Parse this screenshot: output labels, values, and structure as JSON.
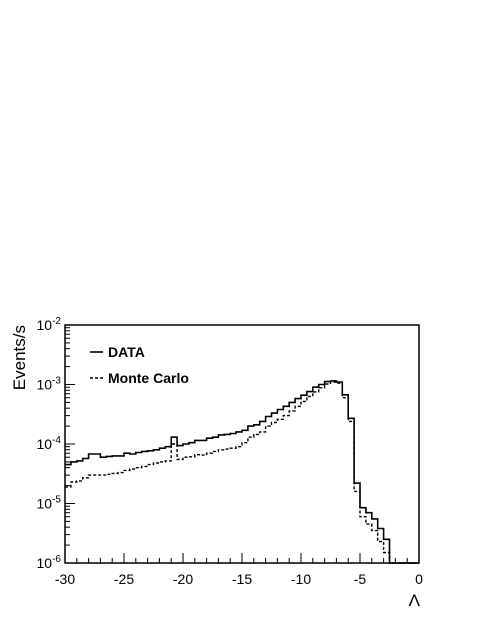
{
  "chart_data": {
    "type": "line",
    "style": "step-histogram",
    "title": "",
    "xlabel": "Λ",
    "ylabel": "Events/s",
    "xlim": [
      -30,
      0
    ],
    "ylim": [
      1e-06,
      0.01
    ],
    "yscale": "log",
    "grid": false,
    "legend_position": "top-left",
    "x_ticks": [
      "-30",
      "-25",
      "-20",
      "-15",
      "-10",
      "-5",
      "0"
    ],
    "y_ticks": [
      {
        "base": "10",
        "exp": "-6",
        "value": 1e-06
      },
      {
        "base": "10",
        "exp": "-5",
        "value": 1e-05
      },
      {
        "base": "10",
        "exp": "-4",
        "value": 0.0001
      },
      {
        "base": "10",
        "exp": "-3",
        "value": 0.001
      },
      {
        "base": "10",
        "exp": "-2",
        "value": 0.01
      }
    ],
    "bin_width": 0.5,
    "bin_start": -30,
    "series": [
      {
        "name": "DATA",
        "line_style": "solid",
        "color": "#000000",
        "values": [
          4.5e-05,
          5e-05,
          5.2e-05,
          5.7e-05,
          6.8e-05,
          6.8e-05,
          6e-05,
          6.2e-05,
          6.3e-05,
          6.3e-05,
          7e-05,
          6.8e-05,
          7.2e-05,
          7.5e-05,
          7.7e-05,
          8e-05,
          8.5e-05,
          9e-05,
          0.00013,
          9.4e-05,
          0.0001,
          0.000105,
          0.000115,
          0.000115,
          0.000125,
          0.00013,
          0.000142,
          0.000145,
          0.00015,
          0.00016,
          0.00017,
          0.0002,
          0.00021,
          0.00024,
          0.00029,
          0.00033,
          0.00038,
          0.00043,
          0.0005,
          0.00058,
          0.00066,
          0.00076,
          0.0009,
          0.001,
          0.00112,
          0.00115,
          0.0011,
          0.00067,
          0.00027,
          2.2e-05,
          8.5e-06,
          7e-06,
          5.5e-06,
          3.8e-06,
          2.5e-06,
          1e-06,
          1e-06,
          1e-06,
          1e-06,
          1e-06
        ]
      },
      {
        "name": "Monte Carlo",
        "line_style": "dashed",
        "color": "#000000",
        "values": [
          1.9e-05,
          2.3e-05,
          2.4e-05,
          2.7e-05,
          3e-05,
          3e-05,
          3e-05,
          3.1e-05,
          3.2e-05,
          3.3e-05,
          3.6e-05,
          3.8e-05,
          4e-05,
          4.2e-05,
          4.5e-05,
          4.8e-05,
          5e-05,
          5.2e-05,
          0.0001,
          5.5e-05,
          6e-05,
          6.1e-05,
          6.6e-05,
          6.5e-05,
          7e-05,
          7.5e-05,
          8e-05,
          8.2e-05,
          8.5e-05,
          9e-05,
          0.000105,
          0.00013,
          0.000145,
          0.00016,
          0.0002,
          0.00023,
          0.00026,
          0.0003,
          0.00036,
          0.00043,
          0.00052,
          0.00063,
          0.00075,
          0.00088,
          0.00102,
          0.0011,
          0.00105,
          0.0006,
          0.00024,
          1.6e-05,
          6e-06,
          4.5e-06,
          3.5e-06,
          2.3e-06,
          1.5e-06,
          1e-06,
          1e-06,
          1e-06,
          1e-06,
          1e-06
        ]
      }
    ]
  }
}
